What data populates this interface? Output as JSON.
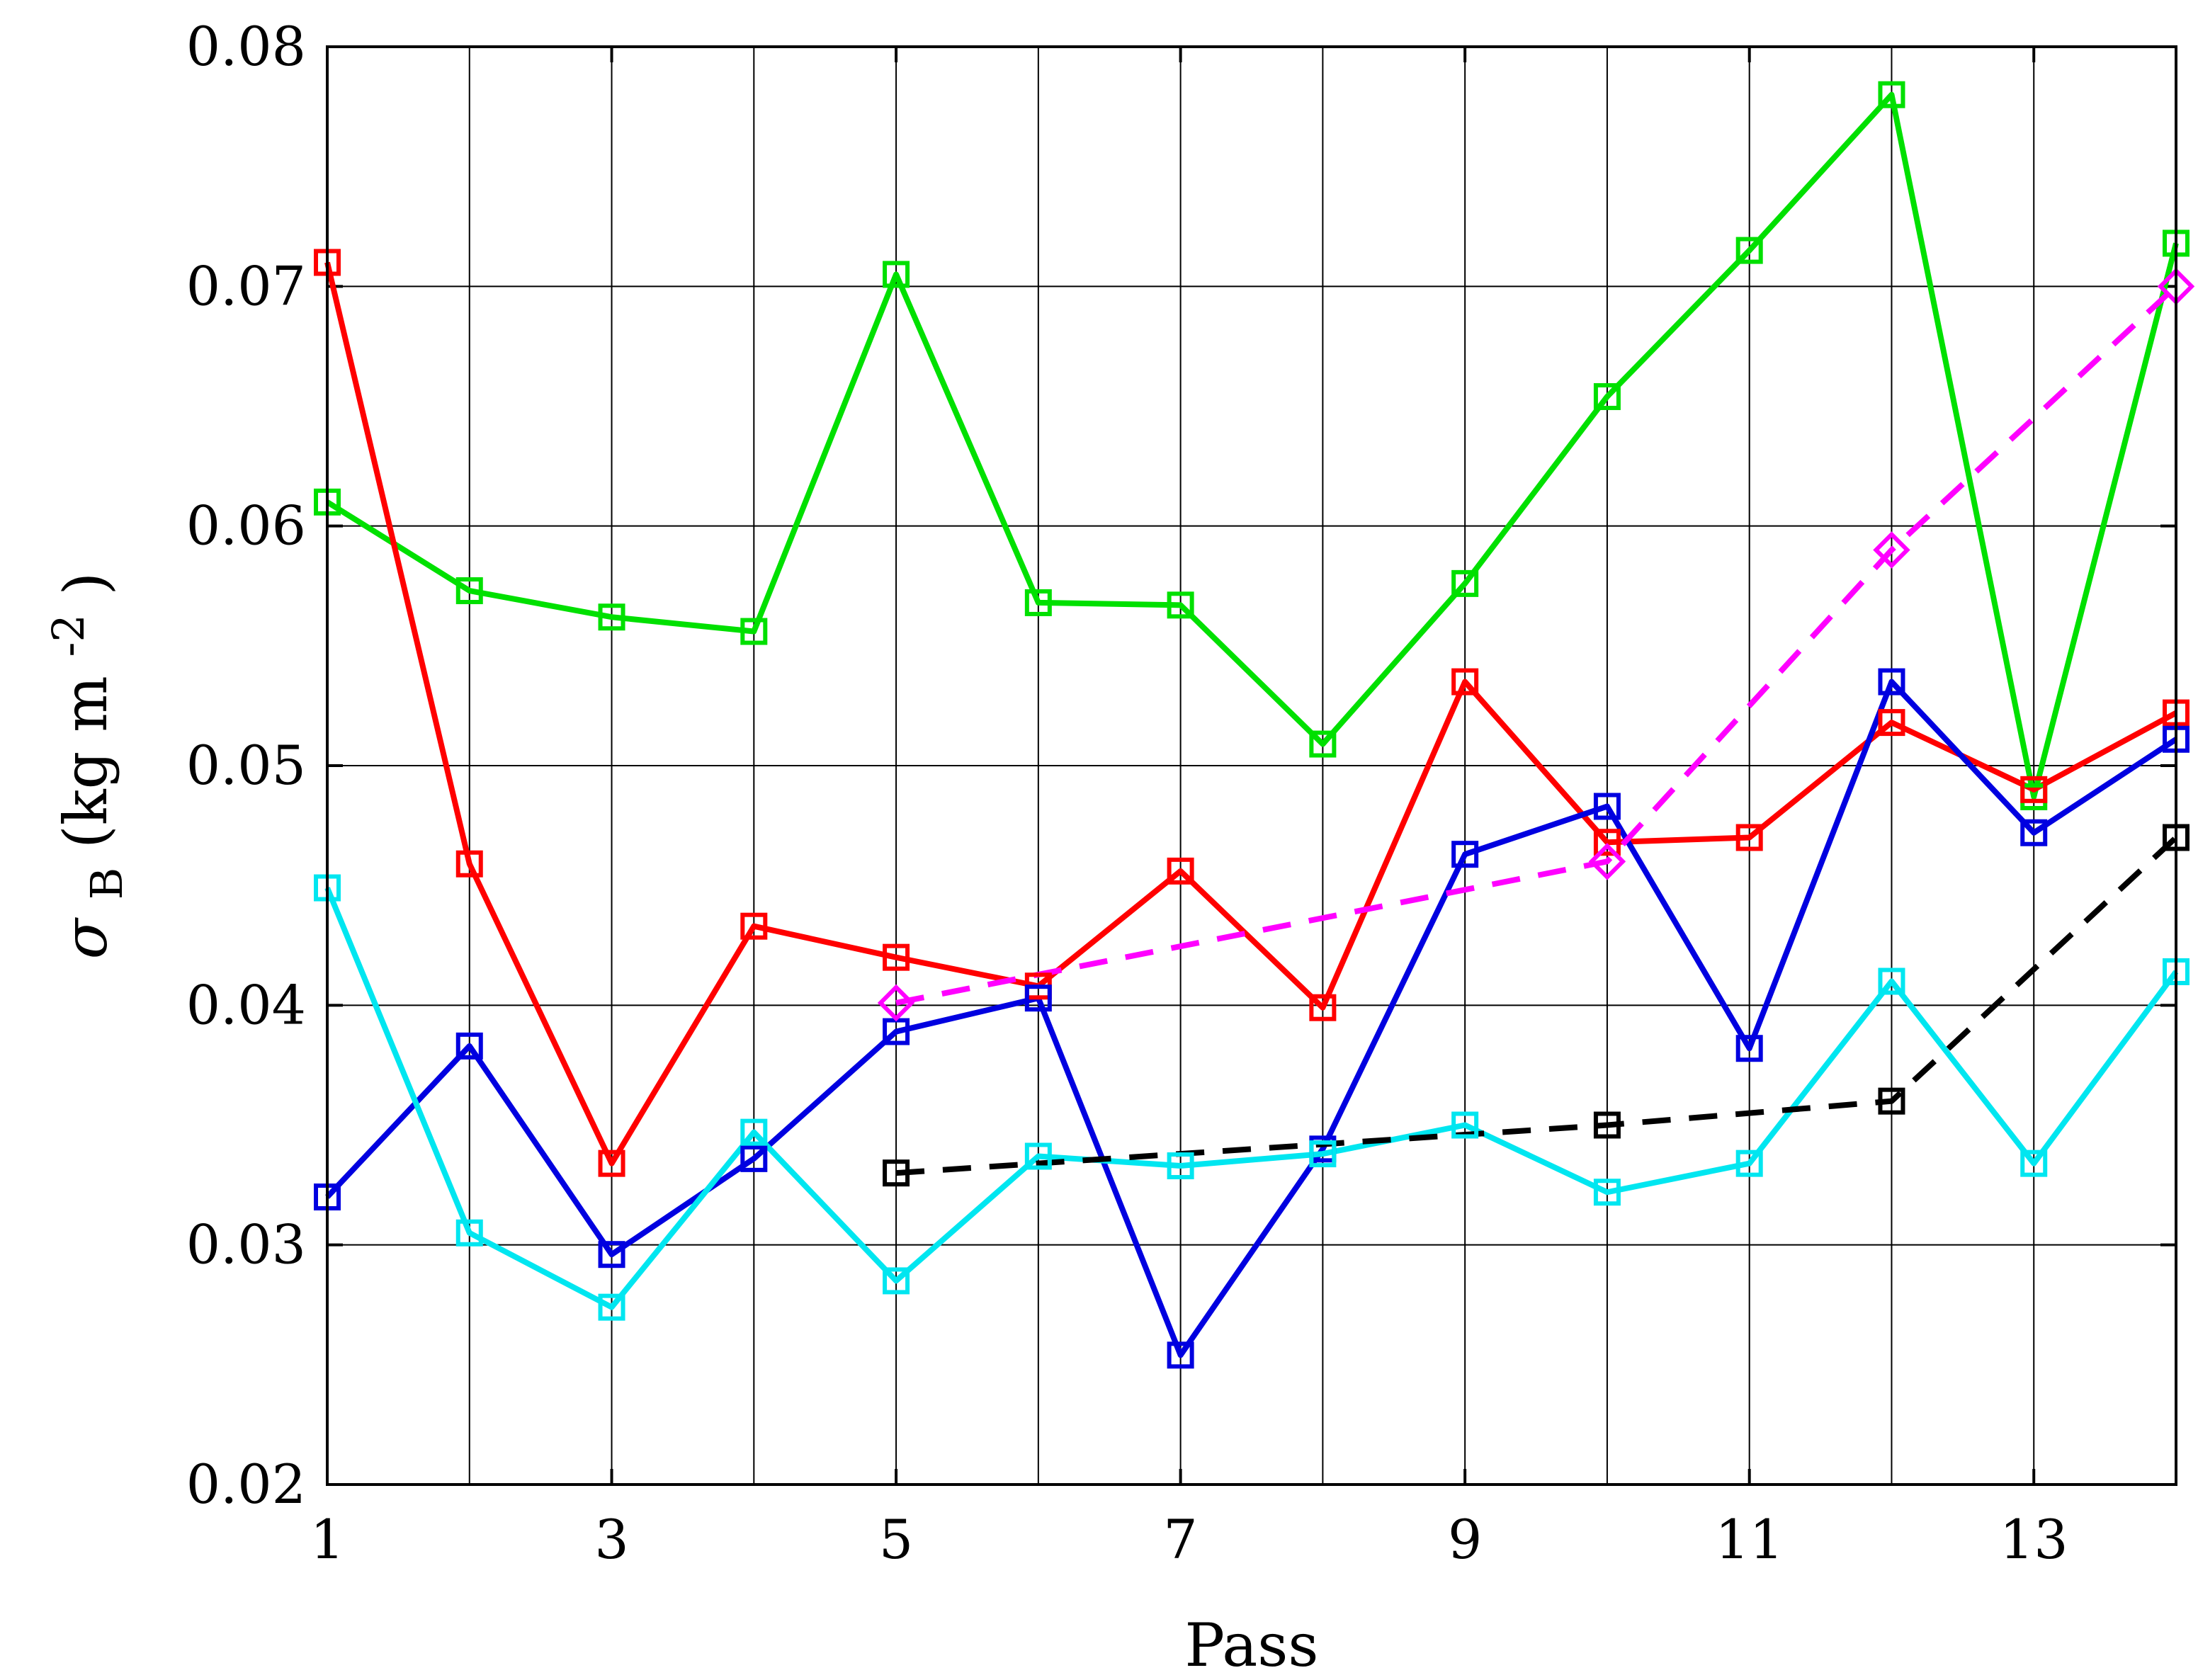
{
  "chart_data": {
    "type": "line",
    "title": "",
    "xlabel": "Pass",
    "ylabel": {
      "symbol": "σ",
      "subscript": "B",
      "units_text": " (kg m",
      "units_superscript": "-2",
      "units_close": ")"
    },
    "xlim": [
      1,
      14
    ],
    "ylim": [
      0.02,
      0.08
    ],
    "x_ticks": [
      1,
      3,
      5,
      7,
      9,
      11,
      13
    ],
    "y_ticks": [
      0.02,
      0.03,
      0.04,
      0.05,
      0.06,
      0.07,
      0.08
    ],
    "x_tick_labels": [
      "1",
      "3",
      "5",
      "7",
      "9",
      "11",
      "13"
    ],
    "y_tick_labels": [
      "0.02",
      "0.03",
      "0.04",
      "0.05",
      "0.06",
      "0.07",
      "0.08"
    ],
    "grid": true,
    "legend": "none",
    "series": [
      {
        "color": "#00e000",
        "style": "solid",
        "marker": "square",
        "x": [
          1,
          2,
          3,
          4,
          5,
          6,
          7,
          8,
          9,
          10,
          11,
          12,
          13,
          14
        ],
        "values": [
          0.061,
          0.0573,
          0.0562,
          0.0556,
          0.0705,
          0.0568,
          0.0567,
          0.0509,
          0.0576,
          0.0654,
          0.0715,
          0.078,
          0.0487,
          0.0718
        ]
      },
      {
        "color": "#ff0000",
        "style": "solid",
        "marker": "square",
        "x": [
          1,
          2,
          3,
          4,
          5,
          6,
          7,
          8,
          9,
          10,
          11,
          12,
          13,
          14
        ],
        "values": [
          0.071,
          0.0459,
          0.0334,
          0.0433,
          0.042,
          0.0408,
          0.0456,
          0.0399,
          0.0535,
          0.0468,
          0.047,
          0.0518,
          0.049,
          0.0522
        ]
      },
      {
        "color": "#0000e0",
        "style": "solid",
        "marker": "square",
        "x": [
          1,
          2,
          3,
          4,
          5,
          6,
          7,
          8,
          9,
          10,
          11,
          12,
          13,
          14
        ],
        "values": [
          0.032,
          0.0383,
          0.0296,
          0.0336,
          0.0389,
          0.0403,
          0.0254,
          0.034,
          0.0463,
          0.0483,
          0.0382,
          0.0535,
          0.0472,
          0.0511
        ]
      },
      {
        "color": "#00e6f0",
        "style": "solid",
        "marker": "square",
        "x": [
          1,
          2,
          3,
          4,
          5,
          6,
          7,
          8,
          9,
          10,
          11,
          12,
          13,
          14
        ],
        "values": [
          0.0449,
          0.0305,
          0.0274,
          0.0347,
          0.0285,
          0.0337,
          0.0333,
          0.0338,
          0.035,
          0.0322,
          0.0334,
          0.041,
          0.0334,
          0.0414
        ]
      },
      {
        "color": "#000000",
        "style": "dashed",
        "marker": "square",
        "x": [
          5,
          10,
          12,
          14
        ],
        "values": [
          0.033,
          0.035,
          0.036,
          0.047
        ]
      },
      {
        "color": "#ff00ff",
        "style": "dashed",
        "marker": "diamond",
        "x": [
          5,
          10,
          12,
          14
        ],
        "values": [
          0.0401,
          0.046,
          0.059,
          0.07
        ]
      }
    ]
  }
}
